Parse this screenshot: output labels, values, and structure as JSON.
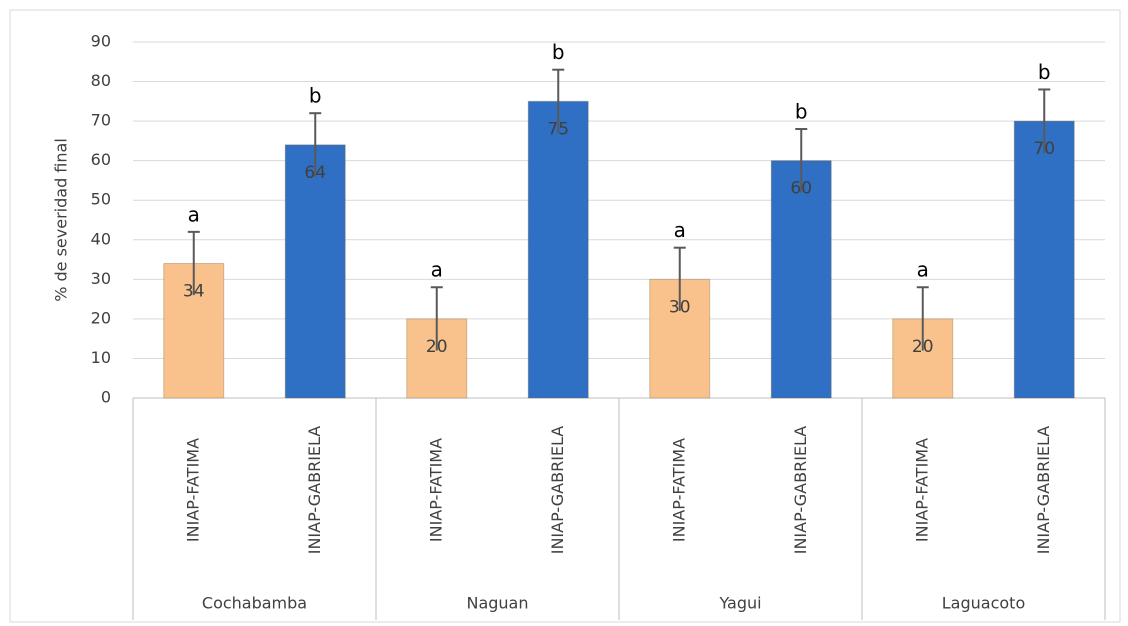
{
  "chart_data": {
    "type": "bar",
    "y_label": "% de severidad final",
    "groups": [
      "Cochabamba",
      "Naguan",
      "Yagui",
      "Laguacoto"
    ],
    "categories": [
      "INIAP-FATIMA",
      "INIAP-GABRIELA",
      "INIAP-FATIMA",
      "INIAP-GABRIELA",
      "INIAP-FATIMA",
      "INIAP-GABRIELA",
      "INIAP-FATIMA",
      "INIAP-GABRIELA"
    ],
    "values": [
      34,
      64,
      20,
      75,
      30,
      60,
      20,
      70
    ],
    "errors": [
      8,
      8,
      8,
      8,
      8,
      8,
      8,
      8
    ],
    "letters": [
      "a",
      "b",
      "a",
      "b",
      "a",
      "b",
      "a",
      "b"
    ],
    "colors": [
      "#f9c28c",
      "#2f6fc4",
      "#f9c28c",
      "#2f6fc4",
      "#f9c28c",
      "#2f6fc4",
      "#f9c28c",
      "#2f6fc4"
    ],
    "ylim": [
      0,
      90
    ],
    "yticks": [
      0,
      10,
      20,
      30,
      40,
      50,
      60,
      70,
      80,
      90
    ],
    "grid": true
  }
}
